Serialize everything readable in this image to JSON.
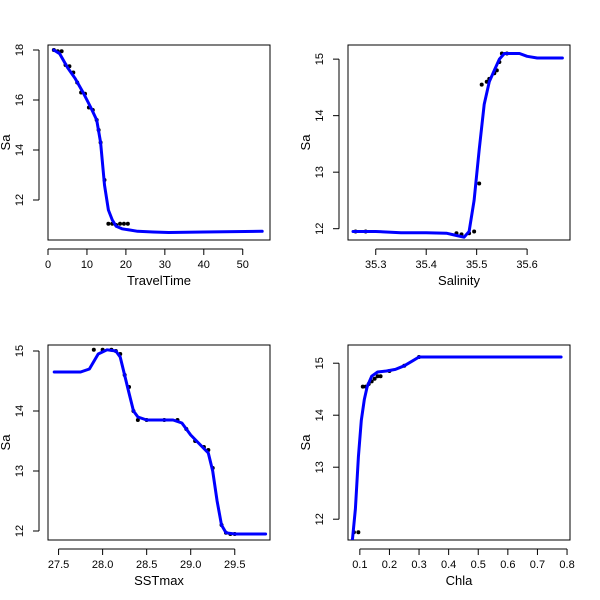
{
  "chart_data": [
    {
      "type": "line",
      "xlabel": "TravelTime",
      "ylabel": "Sa",
      "xlim": [
        0,
        57
      ],
      "ylim": [
        10.4,
        18.2
      ],
      "xticks": [
        0,
        10,
        20,
        30,
        40,
        50
      ],
      "yticks": [
        12,
        14,
        16,
        18
      ],
      "points": [
        [
          1.5,
          18.0
        ],
        [
          2.5,
          17.95
        ],
        [
          3.5,
          17.95
        ],
        [
          4.5,
          17.4
        ],
        [
          5.5,
          17.35
        ],
        [
          6.5,
          17.1
        ],
        [
          7.5,
          16.7
        ],
        [
          8.5,
          16.3
        ],
        [
          9.5,
          16.25
        ],
        [
          10.5,
          15.7
        ],
        [
          11.5,
          15.6
        ],
        [
          12.5,
          15.2
        ],
        [
          13,
          14.8
        ],
        [
          13.5,
          14.3
        ],
        [
          14.5,
          12.8
        ],
        [
          15.5,
          11.05
        ],
        [
          16.5,
          11.05
        ],
        [
          17.5,
          11.0
        ],
        [
          18.5,
          11.05
        ],
        [
          19.5,
          11.05
        ],
        [
          20.5,
          11.05
        ]
      ],
      "series": [
        {
          "x": [
            1.5,
            3,
            5,
            7,
            9,
            11,
            12.5,
            13.5,
            14.5,
            15.5,
            16.5,
            17.5,
            19,
            21,
            23,
            27,
            31,
            40,
            55
          ],
          "y": [
            18.0,
            17.85,
            17.3,
            16.85,
            16.3,
            15.7,
            15.2,
            14.3,
            12.6,
            11.6,
            11.2,
            10.95,
            10.85,
            10.8,
            10.75,
            10.72,
            10.7,
            10.72,
            10.75
          ]
        }
      ]
    },
    {
      "type": "line",
      "xlabel": "Salinity",
      "ylabel": "Sa",
      "xlim": [
        35.245,
        35.685
      ],
      "ylim": [
        11.8,
        15.25
      ],
      "xticks": [
        35.3,
        35.4,
        35.5,
        35.6
      ],
      "yticks": [
        12.0,
        13.0,
        14.0,
        15.0
      ],
      "points": [
        [
          35.26,
          11.95
        ],
        [
          35.28,
          11.95
        ],
        [
          35.46,
          11.92
        ],
        [
          35.47,
          11.9
        ],
        [
          35.485,
          11.92
        ],
        [
          35.495,
          11.95
        ],
        [
          35.505,
          12.8
        ],
        [
          35.51,
          14.55
        ],
        [
          35.52,
          14.6
        ],
        [
          35.525,
          14.65
        ],
        [
          35.535,
          14.75
        ],
        [
          35.54,
          14.8
        ],
        [
          35.545,
          14.95
        ],
        [
          35.55,
          15.1
        ],
        [
          35.56,
          15.1
        ]
      ],
      "series": [
        {
          "x": [
            35.255,
            35.3,
            35.35,
            35.4,
            35.44,
            35.46,
            35.475,
            35.485,
            35.495,
            35.505,
            35.515,
            35.525,
            35.535,
            35.545,
            35.555,
            35.57,
            35.585,
            35.6,
            35.62,
            35.65,
            35.67
          ],
          "y": [
            11.95,
            11.95,
            11.93,
            11.93,
            11.92,
            11.88,
            11.85,
            11.95,
            12.5,
            13.4,
            14.2,
            14.6,
            14.8,
            15.0,
            15.1,
            15.1,
            15.1,
            15.05,
            15.02,
            15.02,
            15.02
          ]
        }
      ]
    },
    {
      "type": "line",
      "xlabel": "SSTmax",
      "ylabel": "Sa",
      "xlim": [
        27.38,
        29.9
      ],
      "ylim": [
        11.85,
        15.1
      ],
      "xticks": [
        27.5,
        28.0,
        28.5,
        29.0,
        29.5
      ],
      "yticks": [
        12.0,
        13.0,
        14.0,
        15.0
      ],
      "points": [
        [
          27.9,
          15.02
        ],
        [
          28.0,
          15.02
        ],
        [
          28.1,
          15.02
        ],
        [
          28.15,
          15.0
        ],
        [
          28.2,
          14.95
        ],
        [
          28.25,
          14.6
        ],
        [
          28.3,
          14.4
        ],
        [
          28.35,
          14.0
        ],
        [
          28.4,
          13.85
        ],
        [
          28.5,
          13.85
        ],
        [
          28.7,
          13.85
        ],
        [
          28.85,
          13.85
        ],
        [
          28.95,
          13.7
        ],
        [
          29.05,
          13.5
        ],
        [
          29.15,
          13.4
        ],
        [
          29.2,
          13.35
        ],
        [
          29.25,
          13.05
        ],
        [
          29.35,
          12.1
        ],
        [
          29.4,
          11.97
        ],
        [
          29.45,
          11.95
        ],
        [
          29.5,
          11.95
        ]
      ],
      "series": [
        {
          "x": [
            27.45,
            27.6,
            27.75,
            27.85,
            27.95,
            28.05,
            28.15,
            28.2,
            28.25,
            28.3,
            28.35,
            28.4,
            28.5,
            28.6,
            28.7,
            28.8,
            28.9,
            29.0,
            29.1,
            29.2,
            29.25,
            29.3,
            29.35,
            29.4,
            29.5,
            29.6,
            29.85
          ],
          "y": [
            14.65,
            14.65,
            14.65,
            14.7,
            14.95,
            15.02,
            15.0,
            14.9,
            14.6,
            14.3,
            14.0,
            13.9,
            13.85,
            13.85,
            13.85,
            13.85,
            13.8,
            13.6,
            13.45,
            13.3,
            13.0,
            12.5,
            12.1,
            11.97,
            11.95,
            11.95,
            11.95
          ]
        }
      ]
    },
    {
      "type": "line",
      "xlabel": "Chla",
      "ylabel": "Sa",
      "xlim": [
        0.06,
        0.81
      ],
      "ylim": [
        11.6,
        15.35
      ],
      "xticks": [
        0.1,
        0.2,
        0.3,
        0.4,
        0.5,
        0.6,
        0.7,
        0.8
      ],
      "yticks": [
        12.0,
        13.0,
        14.0,
        15.0
      ],
      "points": [
        [
          0.08,
          11.75
        ],
        [
          0.095,
          11.75
        ],
        [
          0.11,
          14.55
        ],
        [
          0.12,
          14.55
        ],
        [
          0.13,
          14.6
        ],
        [
          0.14,
          14.65
        ],
        [
          0.15,
          14.7
        ],
        [
          0.16,
          14.75
        ],
        [
          0.17,
          14.75
        ],
        [
          0.2,
          14.85
        ],
        [
          0.25,
          14.95
        ],
        [
          0.3,
          15.12
        ]
      ],
      "series": [
        {
          "x": [
            0.075,
            0.085,
            0.095,
            0.105,
            0.115,
            0.125,
            0.14,
            0.16,
            0.19,
            0.22,
            0.25,
            0.28,
            0.3,
            0.35,
            0.45,
            0.6,
            0.78
          ],
          "y": [
            11.6,
            12.2,
            13.2,
            13.9,
            14.3,
            14.55,
            14.75,
            14.83,
            14.85,
            14.88,
            14.95,
            15.05,
            15.12,
            15.12,
            15.12,
            15.12,
            15.12
          ]
        }
      ]
    }
  ],
  "colors": {
    "fit_line": "#0000ff",
    "points": "#000000",
    "frame": "#000000"
  }
}
